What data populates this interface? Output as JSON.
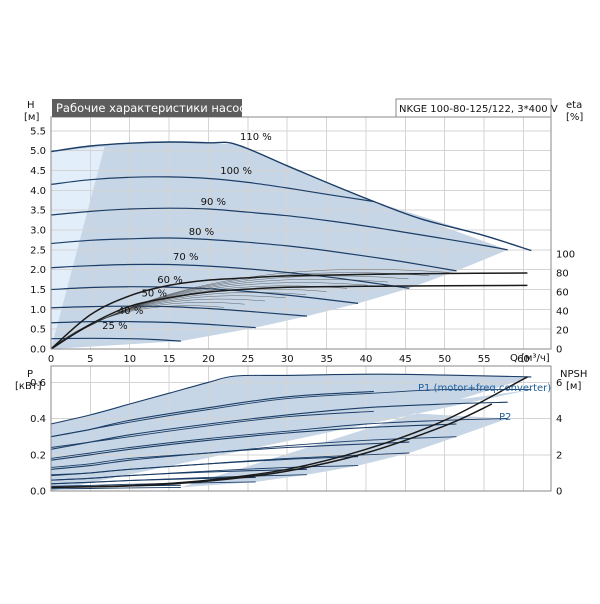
{
  "header": {
    "title": "Рабочие характеристики насоса",
    "model": "NKGE 100-80-125/122, 3*400 V"
  },
  "colors": {
    "curve": "#1b3d66",
    "area": "#c7d6e6",
    "area_light": "#e2eef9",
    "eta_curve": "#1a1a1a",
    "power_label": "#1f5f9a"
  },
  "chart_data": [
    {
      "type": "line",
      "panel": "head-efficiency",
      "title": "Рабочие характеристики насоса",
      "ylabel": "H",
      "yunit": "[м]",
      "y2label": "eta",
      "y2unit": "[%]",
      "xlabel": "Q",
      "xunit": "[м³/ч]",
      "xlim": [
        0,
        63.5
      ],
      "ylim": [
        0,
        5.85
      ],
      "y2lim": [
        0,
        100
      ],
      "xticks": [
        0,
        5,
        10,
        15,
        20,
        25,
        30,
        35,
        40,
        45,
        50,
        55,
        60
      ],
      "yticks": [
        "0.0",
        "0.5",
        "1.0",
        "1.5",
        "2.0",
        "2.5",
        "3.0",
        "3.5",
        "4.0",
        "4.5",
        "5.0",
        "5.5"
      ],
      "y2ticks": [
        0,
        20,
        40,
        60,
        80,
        100
      ],
      "grid": true,
      "head_curves": [
        {
          "label": "110 %",
          "q": [
            0,
            5,
            10,
            15,
            20,
            23.5,
            30,
            35,
            41,
            47,
            55,
            61
          ],
          "h": [
            4.98,
            5.12,
            5.19,
            5.22,
            5.2,
            5.16,
            4.62,
            4.2,
            3.72,
            3.28,
            2.86,
            2.48
          ]
        },
        {
          "label": "100 %",
          "q": [
            0,
            5,
            10,
            15,
            20,
            25,
            30,
            35,
            41
          ],
          "h": [
            4.15,
            4.27,
            4.33,
            4.34,
            4.3,
            4.2,
            4.06,
            3.9,
            3.72
          ]
        },
        {
          "label": "90 %",
          "q": [
            0,
            5,
            10,
            15,
            20,
            25,
            30,
            35,
            40,
            45,
            50,
            55,
            58
          ],
          "h": [
            3.38,
            3.47,
            3.53,
            3.55,
            3.53,
            3.45,
            3.36,
            3.24,
            3.1,
            2.94,
            2.78,
            2.61,
            2.5
          ]
        },
        {
          "label": "80 %",
          "q": [
            0,
            5,
            10,
            15,
            20,
            25,
            30,
            35,
            40,
            45,
            51.5
          ],
          "h": [
            2.66,
            2.74,
            2.78,
            2.8,
            2.76,
            2.69,
            2.6,
            2.48,
            2.34,
            2.19,
            1.97
          ]
        },
        {
          "label": "70 %",
          "q": [
            0,
            5,
            10,
            15,
            20,
            25,
            30,
            35,
            40,
            45.5
          ],
          "h": [
            2.05,
            2.1,
            2.13,
            2.13,
            2.09,
            2.02,
            1.93,
            1.82,
            1.69,
            1.53
          ]
        },
        {
          "label": "60 %",
          "q": [
            0,
            5,
            10,
            15,
            20,
            25,
            30,
            34,
            39
          ],
          "h": [
            1.5,
            1.55,
            1.57,
            1.56,
            1.52,
            1.45,
            1.36,
            1.27,
            1.15
          ]
        },
        {
          "label": "50 %",
          "q": [
            0,
            5,
            10,
            15,
            20,
            25,
            32.5
          ],
          "h": [
            1.04,
            1.07,
            1.08,
            1.07,
            1.02,
            0.95,
            0.83
          ]
        },
        {
          "label": "40 %",
          "q": [
            0,
            5,
            10,
            15,
            20,
            26
          ],
          "h": [
            0.66,
            0.69,
            0.69,
            0.67,
            0.62,
            0.54
          ]
        },
        {
          "label": "25 %",
          "q": [
            0,
            5,
            10,
            13,
            16.5
          ],
          "h": [
            0.26,
            0.27,
            0.26,
            0.24,
            0.2
          ]
        }
      ],
      "eta_curves": [
        {
          "q": [
            0,
            5,
            10,
            15,
            20,
            25,
            30,
            40,
            50,
            60.5
          ],
          "eta": [
            0,
            36,
            56,
            67,
            72.5,
            75,
            77,
            78.5,
            79.5,
            80
          ]
        },
        {
          "q": [
            0,
            5,
            10,
            15,
            20,
            25,
            30,
            40,
            50,
            60.5
          ],
          "eta": [
            0,
            26,
            45,
            54,
            60,
            63,
            65,
            66,
            66.5,
            67
          ]
        }
      ]
    },
    {
      "type": "line",
      "panel": "power-npsh",
      "ylabel": "P",
      "yunit": "[кВт]",
      "y2label": "NPSH",
      "y2unit": "[м]",
      "xlim": [
        0,
        63.5
      ],
      "ylim": [
        0,
        0.69
      ],
      "y2lim": [
        0,
        6.9
      ],
      "yticks": [
        "0.0",
        "0.2",
        "0.4",
        "0.6"
      ],
      "y2ticks": [
        0,
        2,
        4,
        6
      ],
      "grid": true,
      "series_labels": [
        "P1 (motor+freq.converter)",
        "P2"
      ],
      "p1_curves": [
        {
          "q": [
            0,
            5,
            10,
            15,
            20,
            23.5,
            30,
            41,
            50,
            61
          ],
          "p": [
            0.37,
            0.42,
            0.48,
            0.54,
            0.6,
            0.635,
            0.638,
            0.645,
            0.64,
            0.63
          ]
        },
        {
          "q": [
            0,
            5,
            10,
            20,
            30,
            41
          ],
          "p": [
            0.3,
            0.34,
            0.39,
            0.46,
            0.52,
            0.55
          ]
        },
        {
          "q": [
            0,
            5,
            10,
            20,
            30,
            40,
            50,
            58
          ],
          "p": [
            0.23,
            0.27,
            0.31,
            0.37,
            0.42,
            0.46,
            0.48,
            0.49
          ]
        },
        {
          "q": [
            0,
            5,
            10,
            20,
            30,
            40,
            51.5
          ],
          "p": [
            0.17,
            0.2,
            0.23,
            0.28,
            0.32,
            0.35,
            0.37
          ]
        },
        {
          "q": [
            0,
            5,
            10,
            20,
            30,
            45.5
          ],
          "p": [
            0.12,
            0.14,
            0.17,
            0.21,
            0.24,
            0.27
          ]
        },
        {
          "q": [
            0,
            5,
            10,
            20,
            30,
            39
          ],
          "p": [
            0.085,
            0.1,
            0.12,
            0.15,
            0.175,
            0.19
          ]
        },
        {
          "q": [
            0,
            5,
            10,
            20,
            32.5
          ],
          "p": [
            0.06,
            0.07,
            0.085,
            0.105,
            0.12
          ]
        },
        {
          "q": [
            0,
            5,
            10,
            20,
            26
          ],
          "p": [
            0.04,
            0.048,
            0.058,
            0.07,
            0.075
          ]
        },
        {
          "q": [
            0,
            5,
            10,
            16.5
          ],
          "p": [
            0.02,
            0.024,
            0.028,
            0.032
          ]
        }
      ],
      "p2_curves": [
        {
          "q": [
            0,
            5,
            10,
            20,
            30,
            41,
            50,
            61
          ],
          "p": [
            0.3,
            0.34,
            0.38,
            0.45,
            0.51,
            0.54,
            0.56,
            0.56
          ]
        },
        {
          "q": [
            0,
            5,
            10,
            20,
            30,
            41
          ],
          "p": [
            0.24,
            0.27,
            0.3,
            0.36,
            0.41,
            0.44
          ]
        },
        {
          "q": [
            0,
            5,
            10,
            20,
            30,
            40,
            50,
            58
          ],
          "p": [
            0.18,
            0.21,
            0.24,
            0.29,
            0.33,
            0.37,
            0.39,
            0.4
          ]
        },
        {
          "q": [
            0,
            5,
            10,
            20,
            30,
            40,
            51.5
          ],
          "p": [
            0.13,
            0.15,
            0.18,
            0.21,
            0.25,
            0.28,
            0.3
          ]
        },
        {
          "q": [
            0,
            5,
            10,
            20,
            30,
            45.5
          ],
          "p": [
            0.09,
            0.1,
            0.12,
            0.15,
            0.18,
            0.21
          ]
        },
        {
          "q": [
            0,
            5,
            10,
            20,
            30,
            39
          ],
          "p": [
            0.06,
            0.07,
            0.085,
            0.11,
            0.13,
            0.14
          ]
        },
        {
          "q": [
            0,
            5,
            10,
            20,
            32.5
          ],
          "p": [
            0.04,
            0.048,
            0.058,
            0.075,
            0.09
          ]
        },
        {
          "q": [
            0,
            5,
            10,
            20,
            26
          ],
          "p": [
            0.026,
            0.031,
            0.037,
            0.046,
            0.05
          ]
        },
        {
          "q": [
            0,
            5,
            10,
            16.5
          ],
          "p": [
            0.012,
            0.014,
            0.017,
            0.02
          ]
        }
      ],
      "npsh_curves": [
        {
          "q": [
            0,
            10,
            20,
            30,
            40,
            50,
            60.5
          ],
          "npsh": [
            0.2,
            0.3,
            0.6,
            1.2,
            2.3,
            3.9,
            6.3
          ]
        },
        {
          "q": [
            0,
            10,
            20,
            30,
            40,
            50,
            56
          ],
          "npsh": [
            0.2,
            0.28,
            0.55,
            1.1,
            2.1,
            3.6,
            4.8
          ]
        }
      ]
    }
  ]
}
